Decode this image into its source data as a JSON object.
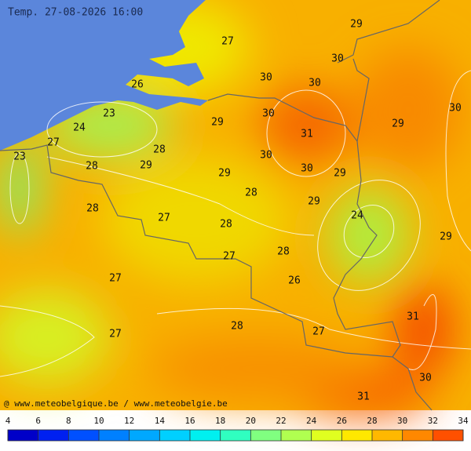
{
  "header": {
    "title": "Temp. 27-08-2026 16:00"
  },
  "contour_labels": [
    27,
    29,
    30,
    26,
    30,
    30,
    30,
    23,
    30,
    29,
    29,
    24,
    31,
    27,
    28,
    23,
    30,
    28,
    29,
    30,
    29,
    29,
    28,
    29,
    28,
    24,
    27,
    28,
    29,
    27,
    28,
    27,
    26,
    31,
    28,
    27,
    27,
    30,
    31
  ],
  "credit": "@ www.meteobelgique.be / www.meteobelgie.be",
  "color_scale": {
    "ticks": [
      4,
      6,
      8,
      10,
      12,
      14,
      16,
      18,
      20,
      22,
      24,
      26,
      28,
      30,
      32,
      34
    ],
    "colors": [
      "#0000c8",
      "#0020f0",
      "#0050ff",
      "#0080ff",
      "#00a8ff",
      "#00d0ff",
      "#00f0f0",
      "#30ffc0",
      "#80ff80",
      "#b0ff50",
      "#e0ff20",
      "#ffe800",
      "#ffb800",
      "#ff8800",
      "#ff5000"
    ]
  }
}
